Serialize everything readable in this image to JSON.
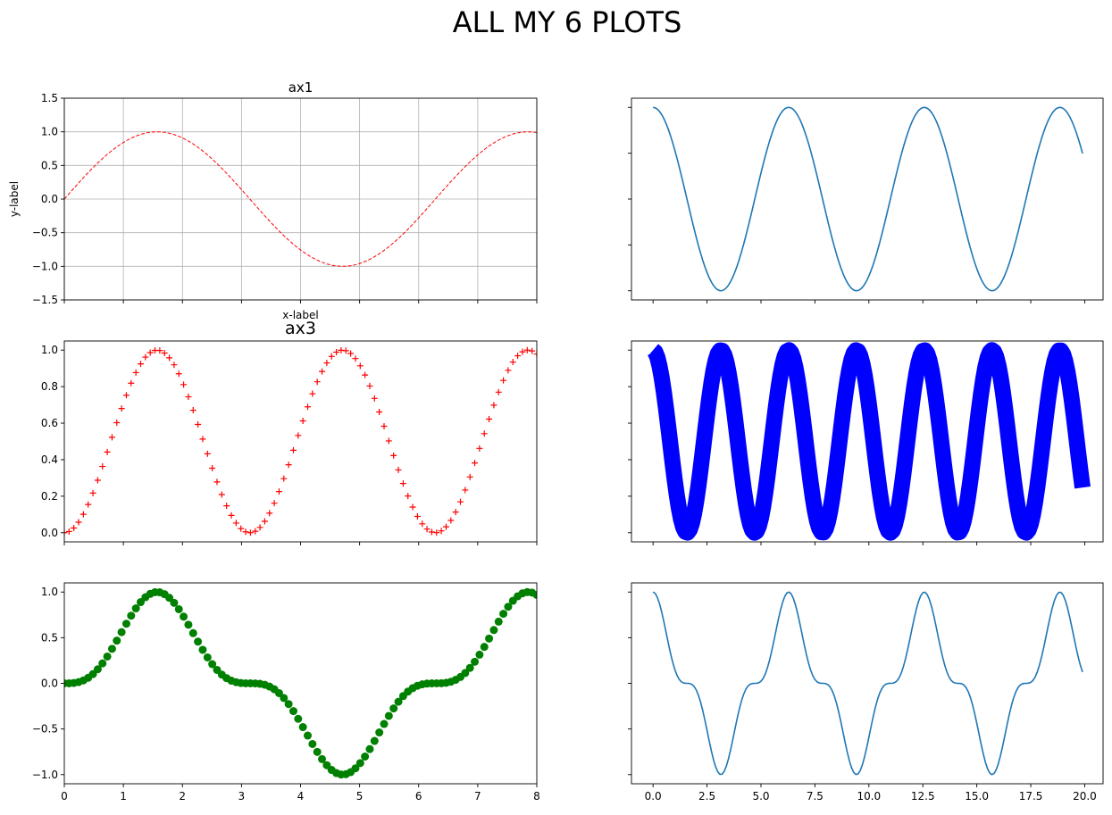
{
  "figure": {
    "suptitle": "ALL MY 6 PLOTS"
  },
  "chart_data": [
    {
      "id": "ax1",
      "type": "line",
      "title": "ax1",
      "xlabel": "x-label",
      "ylabel": "y-label",
      "xlim": [
        0,
        8
      ],
      "ylim": [
        -1.5,
        1.5
      ],
      "grid": true,
      "xticks": [
        0,
        1,
        2,
        3,
        4,
        5,
        6,
        7,
        8
      ],
      "xtick_labels_visible": false,
      "yticks": [
        -1.5,
        -1.0,
        -0.5,
        0.0,
        0.5,
        1.0,
        1.5
      ],
      "ytick_labels": [
        "−1.5",
        "−1.0",
        "−0.5",
        "0.0",
        "0.5",
        "1.0",
        "1.5"
      ],
      "series": [
        {
          "function": "sin(x)",
          "x_range": [
            0,
            8
          ],
          "n_points": 100,
          "color": "#ff0000",
          "linestyle": "dashed",
          "linewidth": "thin"
        }
      ]
    },
    {
      "id": "ax2",
      "type": "line",
      "title": "",
      "xlim": [
        -1,
        20.85
      ],
      "ylim": [
        -1.1,
        1.1
      ],
      "grid": false,
      "xticks": [
        0,
        2.5,
        5,
        7.5,
        10,
        12.5,
        15,
        17.5,
        20
      ],
      "xtick_labels_visible": false,
      "yticks": [
        -1.0,
        -0.5,
        0.0,
        0.5,
        1.0
      ],
      "ytick_labels_visible": false,
      "series": [
        {
          "function": "cos(x)",
          "x_range": [
            0,
            19.9
          ],
          "n_points": 200,
          "color": "#1f77b4",
          "linestyle": "solid",
          "linewidth": "normal"
        }
      ]
    },
    {
      "id": "ax3",
      "type": "scatter",
      "title": "ax3",
      "xlim": [
        0,
        8
      ],
      "ylim": [
        -0.05,
        1.05
      ],
      "grid": false,
      "xticks": [
        0,
        1,
        2,
        3,
        4,
        5,
        6,
        7,
        8
      ],
      "xtick_labels_visible": false,
      "yticks": [
        0.0,
        0.2,
        0.4,
        0.6,
        0.8,
        1.0
      ],
      "ytick_labels": [
        "0.0",
        "0.2",
        "0.4",
        "0.6",
        "0.8",
        "1.0"
      ],
      "series": [
        {
          "function": "sin(x)^2",
          "x_range": [
            0,
            8
          ],
          "n_points": 100,
          "color": "#ff0000",
          "marker": "+"
        }
      ]
    },
    {
      "id": "ax4",
      "type": "line",
      "title": "",
      "xlim": [
        -1,
        20.85
      ],
      "ylim": [
        -0.05,
        1.05
      ],
      "grid": false,
      "xticks": [
        0,
        2.5,
        5,
        7.5,
        10,
        12.5,
        15,
        17.5,
        20
      ],
      "xtick_labels_visible": false,
      "yticks": [
        0.0,
        0.2,
        0.4,
        0.6,
        0.8,
        1.0
      ],
      "ytick_labels_visible": false,
      "series": [
        {
          "function": "cos(x)^2",
          "x_range": [
            0,
            19.9
          ],
          "n_points": 200,
          "color": "#0000ff",
          "linestyle": "solid",
          "linewidth": "very thick"
        }
      ]
    },
    {
      "id": "ax5",
      "type": "scatter",
      "title": "",
      "xlim": [
        0,
        8
      ],
      "ylim": [
        -1.1,
        1.1
      ],
      "grid": false,
      "xticks": [
        0,
        1,
        2,
        3,
        4,
        5,
        6,
        7,
        8
      ],
      "xtick_labels": [
        "0",
        "1",
        "2",
        "3",
        "4",
        "5",
        "6",
        "7",
        "8"
      ],
      "yticks": [
        -1.0,
        -0.5,
        0.0,
        0.5,
        1.0
      ],
      "ytick_labels": [
        "−1.0",
        "−0.5",
        "0.0",
        "0.5",
        "1.0"
      ],
      "series": [
        {
          "function": "sin(x)^3",
          "x_range": [
            0,
            8
          ],
          "n_points": 100,
          "color": "#008000",
          "marker": "o"
        }
      ]
    },
    {
      "id": "ax6",
      "type": "line",
      "title": "",
      "xlim": [
        -1,
        20.85
      ],
      "ylim": [
        -1.1,
        1.1
      ],
      "grid": false,
      "xticks": [
        0,
        2.5,
        5,
        7.5,
        10,
        12.5,
        15,
        17.5,
        20
      ],
      "xtick_labels": [
        "0.0",
        "2.5",
        "5.0",
        "7.5",
        "10.0",
        "12.5",
        "15.0",
        "17.5",
        "20.0"
      ],
      "yticks": [
        -1.0,
        -0.5,
        0.0,
        0.5,
        1.0
      ],
      "ytick_labels_visible": false,
      "series": [
        {
          "function": "cos(x)^3",
          "x_range": [
            0,
            19.9
          ],
          "n_points": 200,
          "color": "#1f77b4",
          "linestyle": "solid",
          "linewidth": "normal"
        }
      ]
    }
  ]
}
